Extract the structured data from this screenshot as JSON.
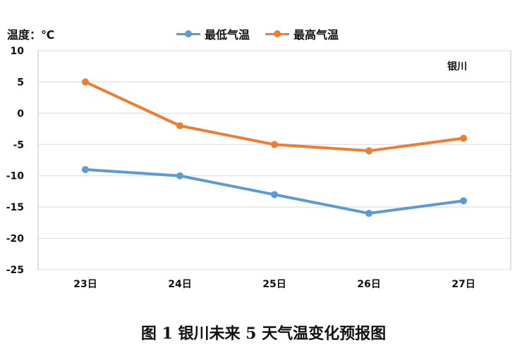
{
  "chart_data": {
    "type": "line",
    "unit_label": "温度：℃",
    "categories": [
      "23日",
      "24日",
      "25日",
      "26日",
      "27日"
    ],
    "series": [
      {
        "name": "最低气温",
        "values": [
          -9,
          -10,
          -13,
          -16,
          -14
        ],
        "color": "#5b9bd5"
      },
      {
        "name": "最高气温",
        "values": [
          5,
          -2,
          -5,
          -6,
          -4
        ],
        "color": "#ed7d31"
      }
    ],
    "ylim": [
      -25,
      10
    ],
    "yticks": [
      10,
      5,
      0,
      -5,
      -10,
      -15,
      -20,
      -25
    ],
    "grid": true,
    "legend_position": "top-center",
    "annotation": "银川"
  },
  "caption": "图 1 银川未来 5 天气温变化预报图"
}
